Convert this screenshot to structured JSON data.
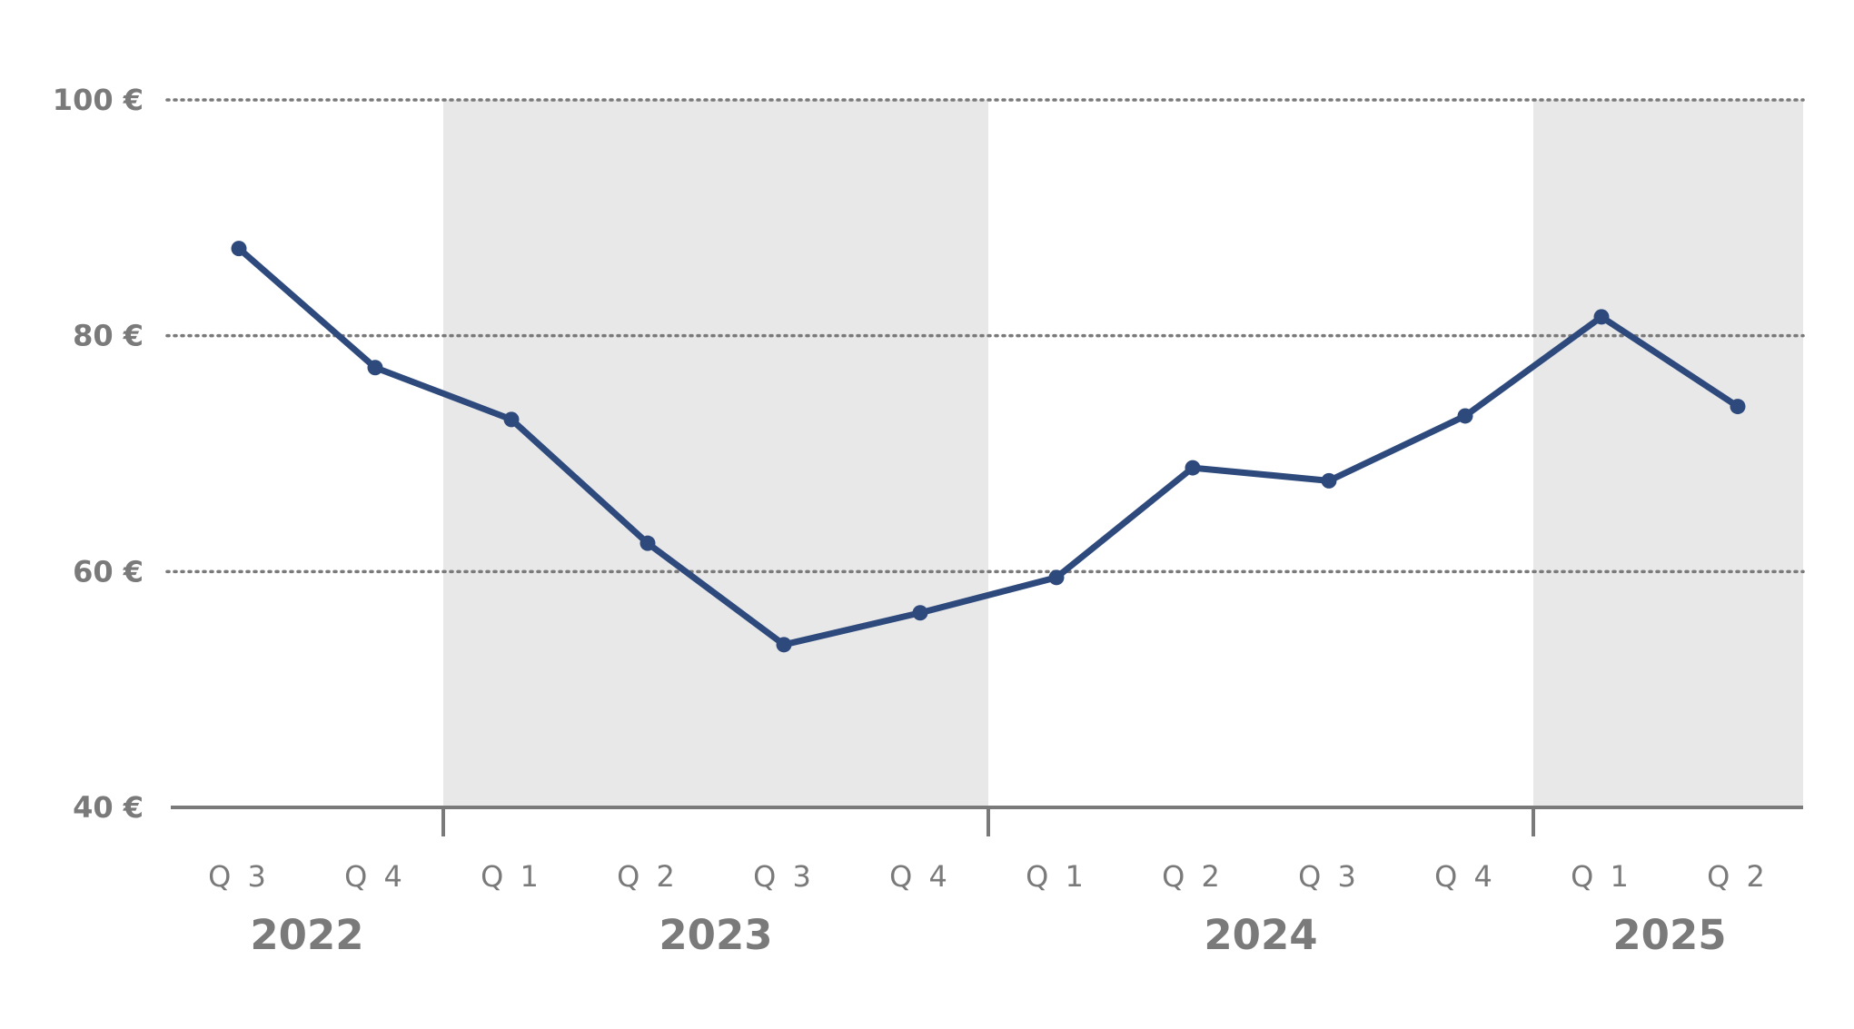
{
  "chart_data": {
    "type": "line",
    "title": "",
    "xlabel": "",
    "ylabel": "",
    "categories": [
      "Q 3",
      "Q 4",
      "Q 1",
      "Q 2",
      "Q 3",
      "Q 4",
      "Q 1",
      "Q 2",
      "Q 3",
      "Q 4",
      "Q 1",
      "Q 2"
    ],
    "years": [
      {
        "label": "2022",
        "start": 0,
        "end": 2,
        "shaded": false
      },
      {
        "label": "2023",
        "start": 2,
        "end": 6,
        "shaded": true
      },
      {
        "label": "2024",
        "start": 6,
        "end": 10,
        "shaded": false
      },
      {
        "label": "2025",
        "start": 10,
        "end": 12,
        "shaded": true
      }
    ],
    "series": [
      {
        "values": [
          87.4,
          77.3,
          72.9,
          62.4,
          53.8,
          56.5,
          59.5,
          68.8,
          67.7,
          73.2,
          81.6,
          74.0
        ]
      }
    ],
    "ylim": [
      40,
      100
    ],
    "yticks": [
      40,
      60,
      80,
      100
    ],
    "ytick_labels": [
      "40 €",
      "60 €",
      "80 €",
      "100 €"
    ],
    "grid": "horizontal dotted",
    "colors": {
      "line": "#2e4a7d",
      "shade": "#e8e8e9",
      "axis": "#7a7a7a",
      "grid": "#7a7a7a",
      "text": "#7a7a7a"
    }
  }
}
